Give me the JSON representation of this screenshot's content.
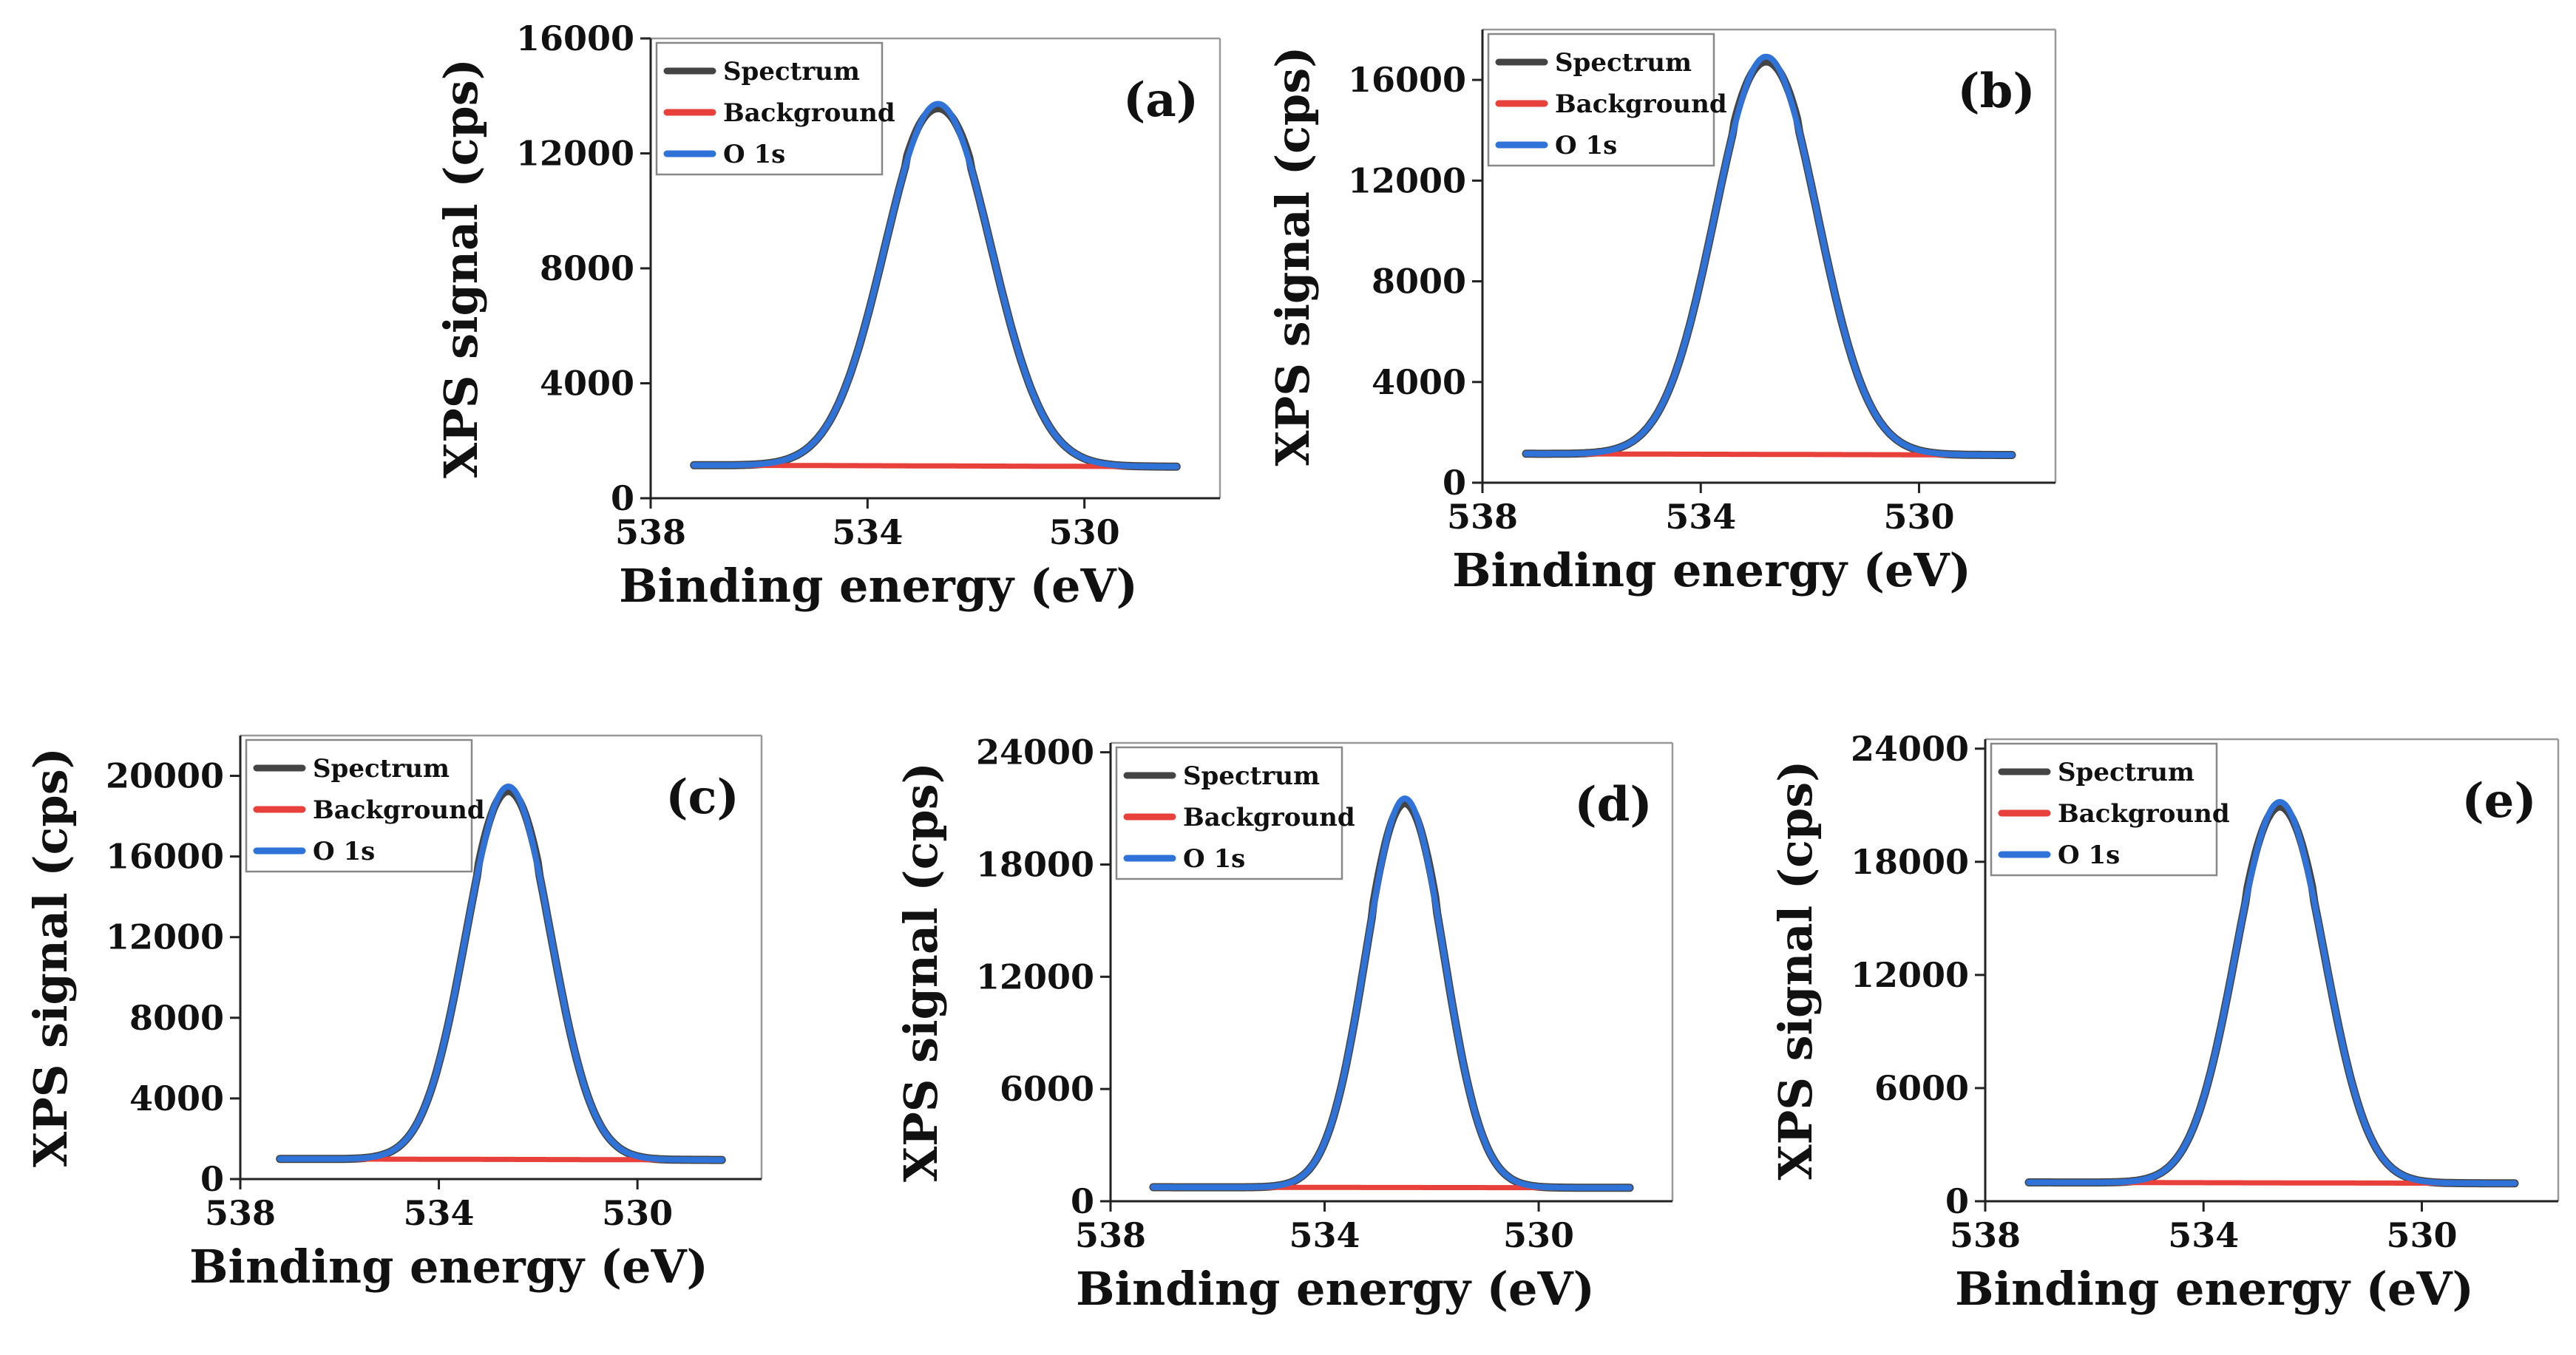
{
  "chart_data": [
    {
      "type": "line",
      "panel_label": "(a)",
      "xlabel": "Binding energy (eV)",
      "ylabel": "XPS signal (cps)",
      "xlim": [
        538,
        527.5
      ],
      "ylim": [
        0,
        16000
      ],
      "xticks": [
        "538",
        "534",
        "530"
      ],
      "xtick_values": [
        538,
        534,
        530
      ],
      "yticks": [
        "0",
        "4000",
        "8000",
        "12000",
        "16000"
      ],
      "ytick_values": [
        0,
        4000,
        8000,
        12000,
        16000
      ],
      "legend": [
        "Spectrum",
        "Background",
        "O 1s"
      ],
      "peak": {
        "center_eV": 532.7,
        "fwhm_eV": 2.3,
        "height_cps": 12600
      },
      "x_range_eV": [
        537.2,
        528.3
      ],
      "background_cps": [
        1150,
        1100
      ],
      "colors": {
        "spectrum": "#444444",
        "background": "#e8413c",
        "o1s": "#2f73d8"
      }
    },
    {
      "type": "line",
      "panel_label": "(b)",
      "xlabel": "Binding energy (eV)",
      "ylabel": "XPS signal (cps)",
      "xlim": [
        538,
        527.5
      ],
      "ylim": [
        0,
        18000
      ],
      "xticks": [
        "538",
        "534",
        "530"
      ],
      "xtick_values": [
        538,
        534,
        530
      ],
      "yticks": [
        "0",
        "4000",
        "8000",
        "12000",
        "16000"
      ],
      "ytick_values": [
        0,
        4000,
        8000,
        12000,
        16000
      ],
      "legend": [
        "Spectrum",
        "Background",
        "O 1s"
      ],
      "peak": {
        "center_eV": 532.8,
        "fwhm_eV": 2.2,
        "height_cps": 15800
      },
      "x_range_eV": [
        537.2,
        528.3
      ],
      "background_cps": [
        1150,
        1100
      ],
      "colors": {
        "spectrum": "#444444",
        "background": "#e8413c",
        "o1s": "#2f73d8"
      }
    },
    {
      "type": "line",
      "panel_label": "(c)",
      "xlabel": "Binding energy (eV)",
      "ylabel": "XPS signal (cps)",
      "xlim": [
        538,
        527.5
      ],
      "ylim": [
        0,
        22000
      ],
      "xticks": [
        "538",
        "534",
        "530"
      ],
      "xtick_values": [
        538,
        534,
        530
      ],
      "yticks": [
        "0",
        "4000",
        "8000",
        "12000",
        "16000",
        "20000"
      ],
      "ytick_values": [
        0,
        4000,
        8000,
        12000,
        16000,
        20000
      ],
      "legend": [
        "Spectrum",
        "Background",
        "O 1s"
      ],
      "peak": {
        "center_eV": 532.6,
        "fwhm_eV": 2.0,
        "height_cps": 18500
      },
      "x_range_eV": [
        537.2,
        528.3
      ],
      "background_cps": [
        1000,
        950
      ],
      "colors": {
        "spectrum": "#444444",
        "background": "#e8413c",
        "o1s": "#2f73d8"
      }
    },
    {
      "type": "line",
      "panel_label": "(d)",
      "xlabel": "Binding energy (eV)",
      "ylabel": "XPS signal (cps)",
      "xlim": [
        538,
        527.5
      ],
      "ylim": [
        0,
        24500
      ],
      "xticks": [
        "538",
        "534",
        "530"
      ],
      "xtick_values": [
        538,
        534,
        530
      ],
      "yticks": [
        "0",
        "6000",
        "12000",
        "18000",
        "24000"
      ],
      "ytick_values": [
        0,
        6000,
        12000,
        18000,
        24000
      ],
      "legend": [
        "Spectrum",
        "Background",
        "O 1s"
      ],
      "peak": {
        "center_eV": 532.5,
        "fwhm_eV": 1.7,
        "height_cps": 20800
      },
      "x_range_eV": [
        537.2,
        528.3
      ],
      "background_cps": [
        750,
        720
      ],
      "colors": {
        "spectrum": "#444444",
        "background": "#e8413c",
        "o1s": "#2f73d8"
      }
    },
    {
      "type": "line",
      "panel_label": "(e)",
      "xlabel": "Binding energy (eV)",
      "ylabel": "XPS signal (cps)",
      "xlim": [
        538,
        527.5
      ],
      "ylim": [
        0,
        24500
      ],
      "xticks": [
        "538",
        "534",
        "530"
      ],
      "xtick_values": [
        538,
        534,
        530
      ],
      "yticks": [
        "0",
        "6000",
        "12000",
        "18000",
        "24000"
      ],
      "ytick_values": [
        0,
        6000,
        12000,
        18000,
        24000
      ],
      "legend": [
        "Spectrum",
        "Background",
        "O 1s"
      ],
      "peak": {
        "center_eV": 532.6,
        "fwhm_eV": 1.9,
        "height_cps": 20200
      },
      "x_range_eV": [
        537.2,
        528.3
      ],
      "background_cps": [
        1000,
        950
      ],
      "colors": {
        "spectrum": "#444444",
        "background": "#e8413c",
        "o1s": "#2f73d8"
      }
    }
  ]
}
